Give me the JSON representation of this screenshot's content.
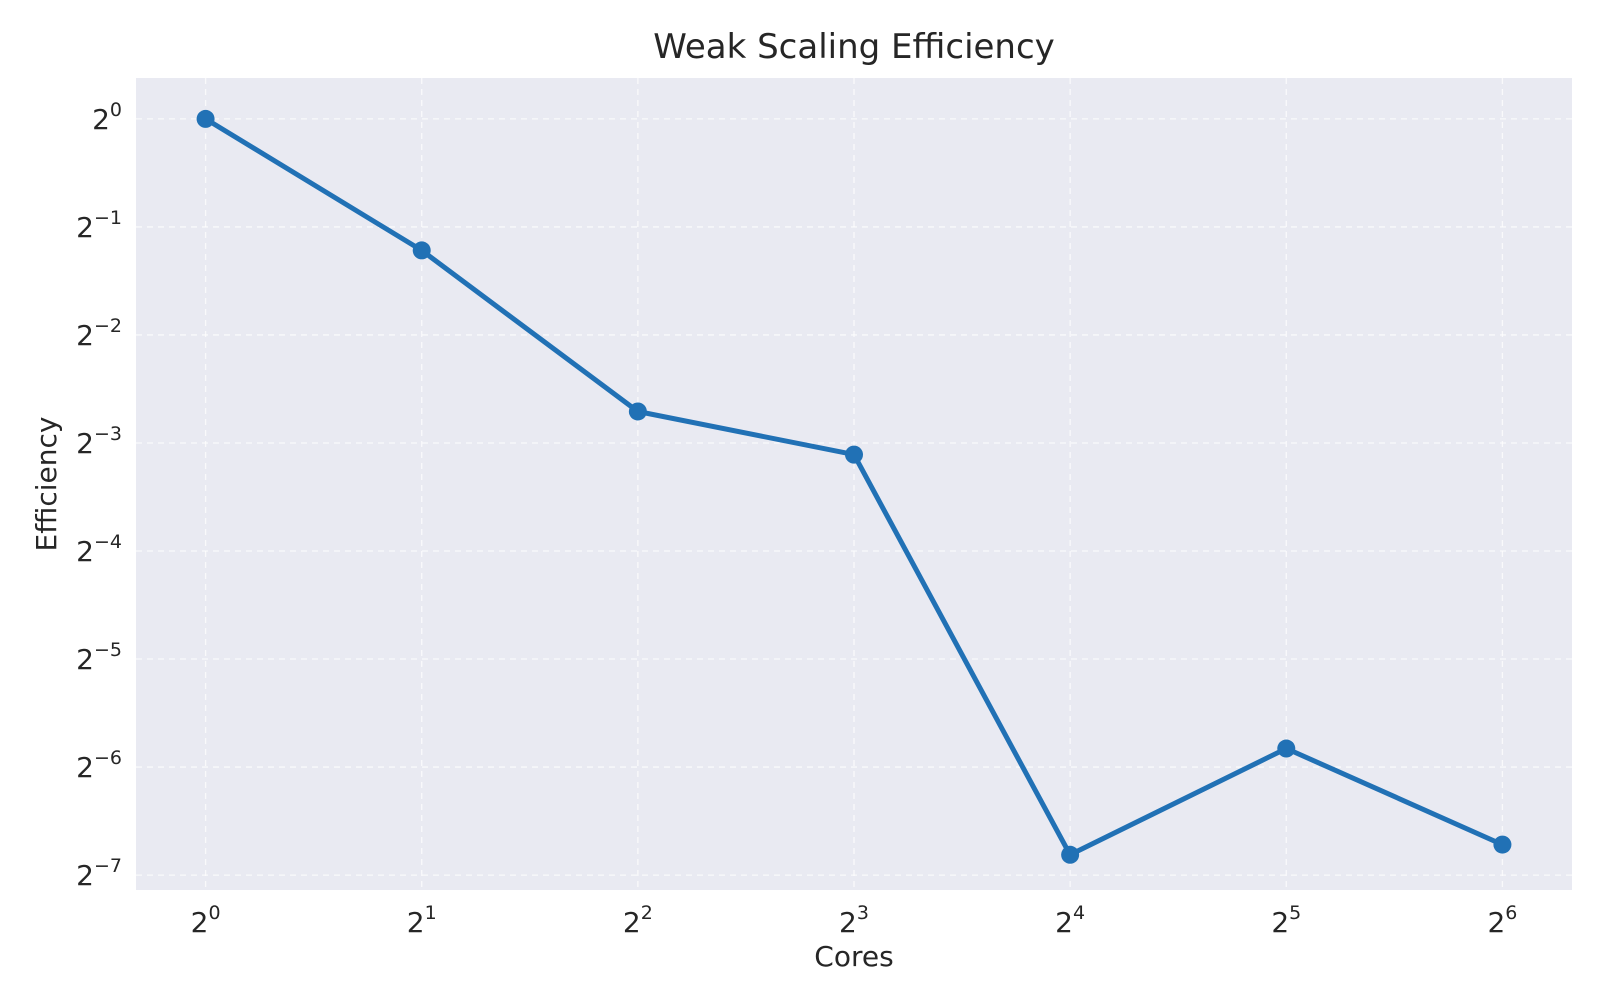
{
  "chart_data": {
    "type": "line",
    "title": "Weak Scaling Efficiency",
    "xlabel": "Cores",
    "ylabel": "Efficiency",
    "xscale": "log2",
    "yscale": "log2",
    "x": [
      1,
      2,
      4,
      8,
      16,
      32,
      64
    ],
    "series": [
      {
        "values": [
          1.0,
          0.43,
          0.153,
          0.116,
          0.0089,
          0.0176,
          0.0095
        ]
      }
    ],
    "xlim": [
      0.8,
      80
    ],
    "ylim": [
      0.0071,
      1.3
    ],
    "xticks": [
      {
        "base": "2",
        "exp": "0"
      },
      {
        "base": "2",
        "exp": "1"
      },
      {
        "base": "2",
        "exp": "2"
      },
      {
        "base": "2",
        "exp": "3"
      },
      {
        "base": "2",
        "exp": "4"
      },
      {
        "base": "2",
        "exp": "5"
      },
      {
        "base": "2",
        "exp": "6"
      }
    ],
    "yticks": [
      {
        "base": "2",
        "exp": "0"
      },
      {
        "base": "2",
        "exp": "−1"
      },
      {
        "base": "2",
        "exp": "−2"
      },
      {
        "base": "2",
        "exp": "−3"
      },
      {
        "base": "2",
        "exp": "−4"
      },
      {
        "base": "2",
        "exp": "−5"
      },
      {
        "base": "2",
        "exp": "−6"
      },
      {
        "base": "2",
        "exp": "−7"
      }
    ],
    "xtick_values": [
      1,
      2,
      4,
      8,
      16,
      32,
      64
    ],
    "ytick_values": [
      1,
      0.5,
      0.25,
      0.125,
      0.0625,
      0.03125,
      0.015625,
      0.0078125
    ],
    "grid": true,
    "legend": false,
    "colors": {
      "series": "#2171b5",
      "plot_background": "#e9eaf2",
      "grid": "#ffffff",
      "text": "#262626"
    }
  }
}
